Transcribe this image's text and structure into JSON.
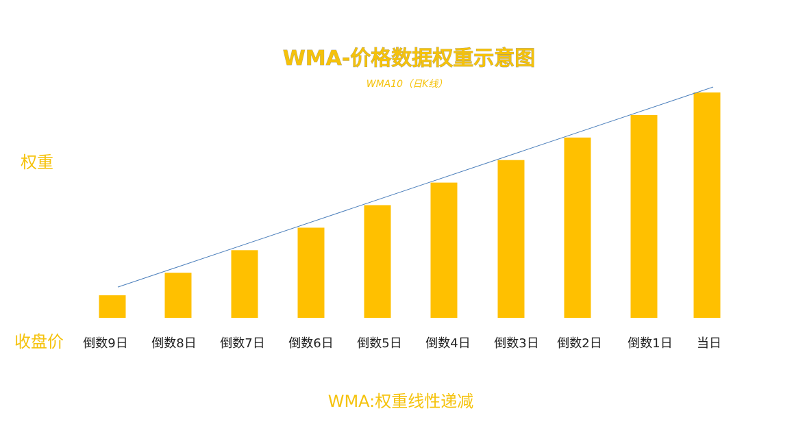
{
  "chart_data": {
    "type": "bar",
    "title": "WMA-价格数据权重示意图",
    "subtitle": "WMA10（日K线）",
    "ylabel": "权重",
    "xlabel": "收盘价",
    "footer": "WMA:权重线性递减",
    "categories": [
      "倒数9日",
      "倒数8日",
      "倒数7日",
      "倒数6日",
      "倒数5日",
      "倒数4日",
      "倒数3日",
      "倒数2日",
      "倒数1日",
      "当日"
    ],
    "values": [
      1,
      2,
      3,
      4,
      5,
      6,
      7,
      8,
      9,
      10
    ],
    "ylim": [
      0,
      10
    ],
    "grid": false,
    "bar_color": "#FFC000",
    "trend_line_color": "#4A7EBB",
    "accent_color": "#F5C20B"
  }
}
